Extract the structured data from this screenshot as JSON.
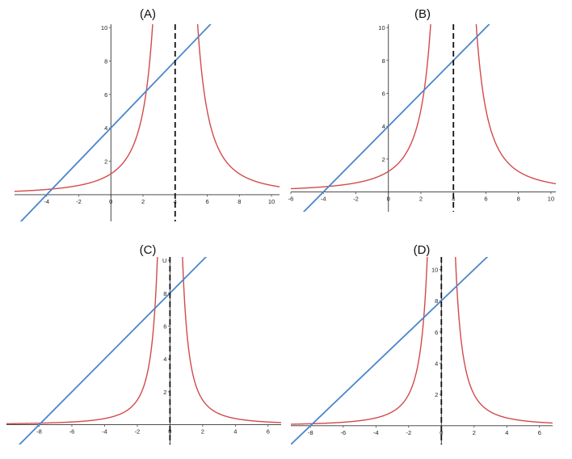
{
  "chart_data": [
    {
      "label": "(A)",
      "type": "line",
      "xlim": [
        -6,
        10.5
      ],
      "ylim": [
        -1.6,
        10.2
      ],
      "xticks": [
        -4,
        -2,
        0,
        2,
        4,
        6,
        8,
        10
      ],
      "xtick_labels": [
        "-4",
        "-2",
        "0",
        "2",
        "4",
        "6",
        "8",
        "10"
      ],
      "yticks": [
        2,
        4,
        6,
        8,
        10
      ],
      "ytick_labels": [
        "2",
        "4",
        "6",
        "8",
        "10"
      ],
      "curve": {
        "asymptote_x": 4,
        "k": 20,
        "offset": 0
      },
      "line": {
        "slope": 1,
        "intercept": 4
      },
      "grid": false
    },
    {
      "label": "(B)",
      "type": "line",
      "xlim": [
        -6,
        10.3
      ],
      "ylim": [
        -1.2,
        10.2
      ],
      "xticks": [
        -6,
        -4,
        -2,
        0,
        2,
        4,
        6,
        8,
        10
      ],
      "xtick_labels": [
        "-6",
        "-4",
        "-2",
        "0",
        "2",
        "4",
        "6",
        "8",
        "10"
      ],
      "yticks": [
        2,
        4,
        6,
        8,
        10
      ],
      "ytick_labels": [
        "2",
        "4",
        "6",
        "8",
        "10"
      ],
      "curve": {
        "asymptote_x": 4,
        "k": 20,
        "offset": 0
      },
      "line": {
        "slope": 1,
        "intercept": 4
      },
      "grid": false
    },
    {
      "label": "(C)",
      "type": "line",
      "xlim": [
        -10,
        6.8
      ],
      "ylim": [
        -1.2,
        10.2
      ],
      "xticks": [
        -8,
        -6,
        -4,
        -2,
        0,
        2,
        4,
        6
      ],
      "xtick_labels": [
        "-8",
        "-6",
        "-4",
        "-2",
        "0",
        "2",
        "4",
        "6"
      ],
      "yticks": [
        2,
        4,
        6,
        8,
        10
      ],
      "ytick_labels": [
        "2",
        "4",
        "6",
        "8",
        "U"
      ],
      "curve": {
        "asymptote_x": 0,
        "k": 6,
        "offset": 0
      },
      "line": {
        "slope": 1,
        "intercept": 8
      },
      "grid": false
    },
    {
      "label": "(D)",
      "type": "line",
      "xlim": [
        -9.2,
        6.8
      ],
      "ylim": [
        -1.2,
        10.8
      ],
      "xticks": [
        -8,
        -6,
        -4,
        -2,
        0,
        2,
        4,
        6
      ],
      "xtick_labels": [
        "-8",
        "-6",
        "-4",
        "-2",
        "0",
        "2",
        "4",
        "6"
      ],
      "yticks": [
        2,
        4,
        6,
        8,
        10
      ],
      "ytick_labels": [
        "2",
        "4",
        "6",
        "8",
        "10"
      ],
      "curve": {
        "asymptote_x": 0,
        "k": 8,
        "offset": 0
      },
      "line": {
        "slope": 1,
        "intercept": 8
      },
      "grid": false
    }
  ],
  "colors": {
    "curve": "#d24a4a",
    "line": "#4a86c8",
    "asymptote": "#111111",
    "axis": "#333333"
  }
}
